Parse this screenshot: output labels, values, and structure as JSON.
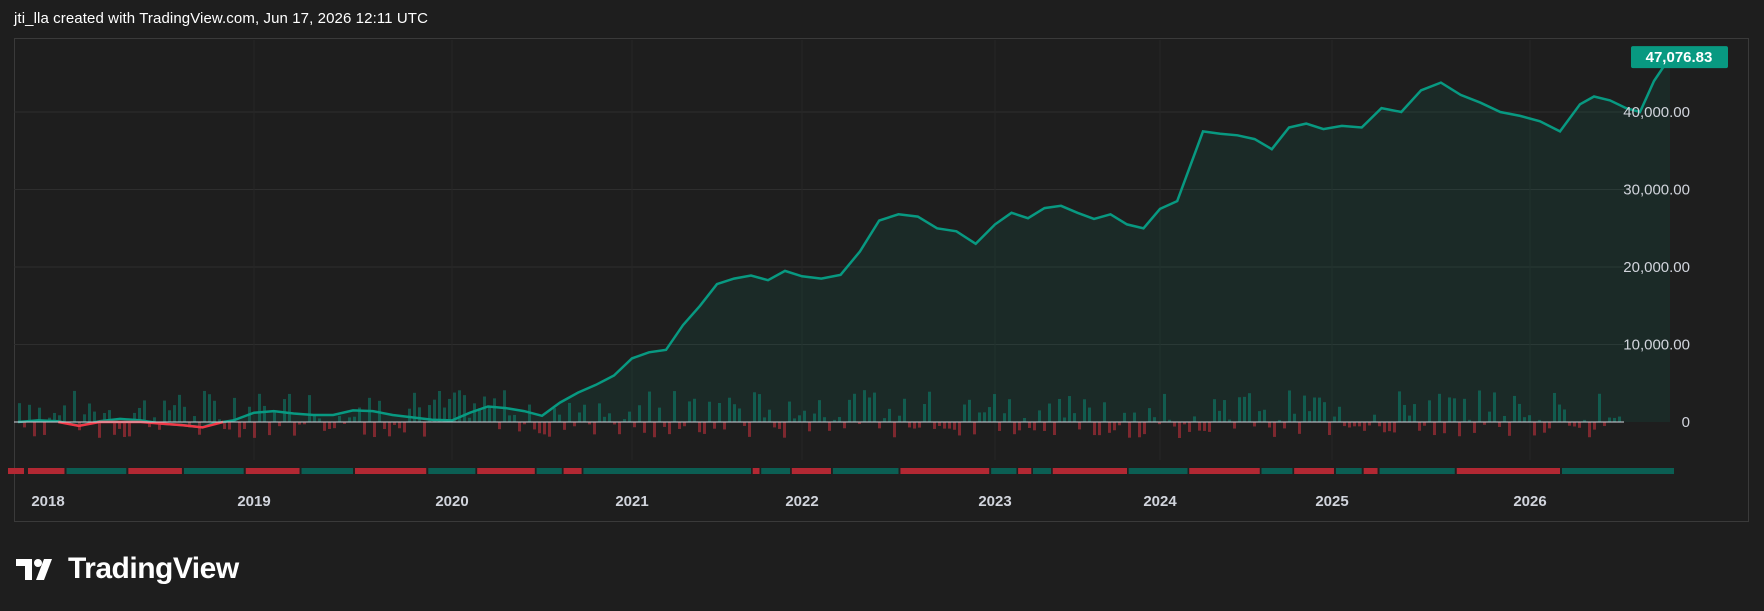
{
  "header": {
    "text": "jti_lla created with TradingView.com, Jun 17, 2026 12:11 UTC"
  },
  "brand": {
    "name": "TradingView",
    "icon": "tradingview-logo-icon"
  },
  "colors": {
    "background": "#1e1e1e",
    "line_up": "#089981",
    "line_down": "#f23645",
    "grid": "#2e2e2e",
    "text": "#d1d4dc",
    "price_tag": "#089981"
  },
  "chart_data": {
    "type": "line",
    "title": "",
    "x_axis_ticks": [
      "2018",
      "2019",
      "2020",
      "2021",
      "2022",
      "2023",
      "2024",
      "2025",
      "2026"
    ],
    "y_axis_ticks": [
      "40,000.00",
      "30,000.00",
      "20,000.00",
      "10,000.00",
      "0"
    ],
    "y_range": [
      0,
      50000
    ],
    "grid": true,
    "last_value_label": "47,076.83",
    "equity_series": [
      {
        "x": 2017.85,
        "y": 0
      },
      {
        "x": 2017.95,
        "y": 200
      },
      {
        "x": 2018.05,
        "y": 100
      },
      {
        "x": 2018.15,
        "y": -500
      },
      {
        "x": 2018.25,
        "y": 100
      },
      {
        "x": 2018.35,
        "y": 400
      },
      {
        "x": 2018.45,
        "y": 200
      },
      {
        "x": 2018.55,
        "y": -200
      },
      {
        "x": 2018.65,
        "y": -400
      },
      {
        "x": 2018.75,
        "y": -700
      },
      {
        "x": 2018.8,
        "y": -200
      },
      {
        "x": 2018.9,
        "y": 200
      },
      {
        "x": 2019.0,
        "y": 1200
      },
      {
        "x": 2019.1,
        "y": 1400
      },
      {
        "x": 2019.2,
        "y": 1100
      },
      {
        "x": 2019.3,
        "y": 900
      },
      {
        "x": 2019.4,
        "y": 900
      },
      {
        "x": 2019.5,
        "y": 1500
      },
      {
        "x": 2019.6,
        "y": 1400
      },
      {
        "x": 2019.7,
        "y": 900
      },
      {
        "x": 2019.8,
        "y": 600
      },
      {
        "x": 2019.9,
        "y": 300
      },
      {
        "x": 2020.0,
        "y": 200
      },
      {
        "x": 2020.1,
        "y": 1200
      },
      {
        "x": 2020.2,
        "y": 2000
      },
      {
        "x": 2020.3,
        "y": 1800
      },
      {
        "x": 2020.4,
        "y": 1400
      },
      {
        "x": 2020.5,
        "y": 800
      },
      {
        "x": 2020.6,
        "y": 2500
      },
      {
        "x": 2020.7,
        "y": 3800
      },
      {
        "x": 2020.8,
        "y": 4800
      },
      {
        "x": 2020.9,
        "y": 6000
      },
      {
        "x": 2021.0,
        "y": 8200
      },
      {
        "x": 2021.1,
        "y": 9000
      },
      {
        "x": 2021.2,
        "y": 9300
      },
      {
        "x": 2021.3,
        "y": 12500
      },
      {
        "x": 2021.4,
        "y": 15000
      },
      {
        "x": 2021.5,
        "y": 17800
      },
      {
        "x": 2021.6,
        "y": 18500
      },
      {
        "x": 2021.7,
        "y": 18900
      },
      {
        "x": 2021.8,
        "y": 18300
      },
      {
        "x": 2021.9,
        "y": 19500
      },
      {
        "x": 2022.0,
        "y": 18800
      },
      {
        "x": 2022.1,
        "y": 18500
      },
      {
        "x": 2022.2,
        "y": 19000
      },
      {
        "x": 2022.3,
        "y": 22000
      },
      {
        "x": 2022.4,
        "y": 26000
      },
      {
        "x": 2022.5,
        "y": 26800
      },
      {
        "x": 2022.6,
        "y": 26500
      },
      {
        "x": 2022.7,
        "y": 25000
      },
      {
        "x": 2022.8,
        "y": 24600
      },
      {
        "x": 2022.9,
        "y": 23000
      },
      {
        "x": 2023.0,
        "y": 25500
      },
      {
        "x": 2023.1,
        "y": 27000
      },
      {
        "x": 2023.2,
        "y": 26300
      },
      {
        "x": 2023.3,
        "y": 27600
      },
      {
        "x": 2023.4,
        "y": 27900
      },
      {
        "x": 2023.5,
        "y": 27000
      },
      {
        "x": 2023.6,
        "y": 26200
      },
      {
        "x": 2023.7,
        "y": 26800
      },
      {
        "x": 2023.8,
        "y": 25500
      },
      {
        "x": 2023.9,
        "y": 25000
      },
      {
        "x": 2024.0,
        "y": 27500
      },
      {
        "x": 2024.1,
        "y": 28500
      },
      {
        "x": 2024.25,
        "y": 37500
      },
      {
        "x": 2024.35,
        "y": 37200
      },
      {
        "x": 2024.45,
        "y": 37000
      },
      {
        "x": 2024.55,
        "y": 36500
      },
      {
        "x": 2024.65,
        "y": 35200
      },
      {
        "x": 2024.75,
        "y": 38000
      },
      {
        "x": 2024.85,
        "y": 38500
      },
      {
        "x": 2024.95,
        "y": 37800
      },
      {
        "x": 2025.05,
        "y": 38200
      },
      {
        "x": 2025.15,
        "y": 38000
      },
      {
        "x": 2025.25,
        "y": 40500
      },
      {
        "x": 2025.35,
        "y": 40000
      },
      {
        "x": 2025.45,
        "y": 42800
      },
      {
        "x": 2025.55,
        "y": 43800
      },
      {
        "x": 2025.65,
        "y": 42200
      },
      {
        "x": 2025.75,
        "y": 41200
      },
      {
        "x": 2025.85,
        "y": 40000
      },
      {
        "x": 2025.95,
        "y": 39500
      },
      {
        "x": 2026.05,
        "y": 38800
      },
      {
        "x": 2026.15,
        "y": 37500
      },
      {
        "x": 2026.25,
        "y": 41000
      },
      {
        "x": 2026.32,
        "y": 42000
      },
      {
        "x": 2026.4,
        "y": 41500
      },
      {
        "x": 2026.48,
        "y": 40500
      },
      {
        "x": 2026.55,
        "y": 40000
      },
      {
        "x": 2026.62,
        "y": 44000
      },
      {
        "x": 2026.7,
        "y": 47076.83
      }
    ],
    "drawdown_series": [
      {
        "x": 2018.05,
        "y": 0
      },
      {
        "x": 2018.15,
        "y": -500
      },
      {
        "x": 2018.25,
        "y": 0
      },
      {
        "x": 2018.45,
        "y": 0
      },
      {
        "x": 2018.55,
        "y": -200
      },
      {
        "x": 2018.65,
        "y": -400
      },
      {
        "x": 2018.75,
        "y": -700
      },
      {
        "x": 2018.85,
        "y": 0
      }
    ],
    "period_bars": {
      "labels": [
        "2018",
        "2019",
        "2020",
        "2021",
        "2022",
        "2023",
        "2024",
        "2025",
        "2026"
      ],
      "segments": [
        {
          "start": 2017.8,
          "end": 2017.88,
          "up": false
        },
        {
          "start": 2017.9,
          "end": 2018.08,
          "up": false
        },
        {
          "start": 2018.09,
          "end": 2018.38,
          "up": true
        },
        {
          "start": 2018.39,
          "end": 2018.65,
          "up": false
        },
        {
          "start": 2018.66,
          "end": 2018.95,
          "up": true
        },
        {
          "start": 2018.96,
          "end": 2019.23,
          "up": false
        },
        {
          "start": 2019.24,
          "end": 2019.5,
          "up": true
        },
        {
          "start": 2019.51,
          "end": 2019.87,
          "up": false
        },
        {
          "start": 2019.88,
          "end": 2020.13,
          "up": true
        },
        {
          "start": 2020.14,
          "end": 2020.46,
          "up": false
        },
        {
          "start": 2020.47,
          "end": 2020.61,
          "up": true
        },
        {
          "start": 2020.62,
          "end": 2020.72,
          "up": false
        },
        {
          "start": 2020.73,
          "end": 2021.7,
          "up": true
        },
        {
          "start": 2021.71,
          "end": 2021.75,
          "up": false
        },
        {
          "start": 2021.76,
          "end": 2021.93,
          "up": true
        },
        {
          "start": 2021.94,
          "end": 2022.15,
          "up": false
        },
        {
          "start": 2022.16,
          "end": 2022.5,
          "up": true
        },
        {
          "start": 2022.51,
          "end": 2022.97,
          "up": false
        },
        {
          "start": 2022.98,
          "end": 2023.13,
          "up": true
        },
        {
          "start": 2023.14,
          "end": 2023.22,
          "up": false
        },
        {
          "start": 2023.23,
          "end": 2023.34,
          "up": true
        },
        {
          "start": 2023.35,
          "end": 2023.8,
          "up": false
        },
        {
          "start": 2023.81,
          "end": 2024.16,
          "up": true
        },
        {
          "start": 2024.17,
          "end": 2024.58,
          "up": false
        },
        {
          "start": 2024.59,
          "end": 2024.77,
          "up": true
        },
        {
          "start": 2024.78,
          "end": 2025.01,
          "up": false
        },
        {
          "start": 2025.02,
          "end": 2025.15,
          "up": true
        },
        {
          "start": 2025.16,
          "end": 2025.23,
          "up": false
        },
        {
          "start": 2025.24,
          "end": 2025.62,
          "up": true
        },
        {
          "start": 2025.63,
          "end": 2026.15,
          "up": false
        },
        {
          "start": 2026.16,
          "end": 2026.72,
          "up": true
        }
      ]
    }
  }
}
